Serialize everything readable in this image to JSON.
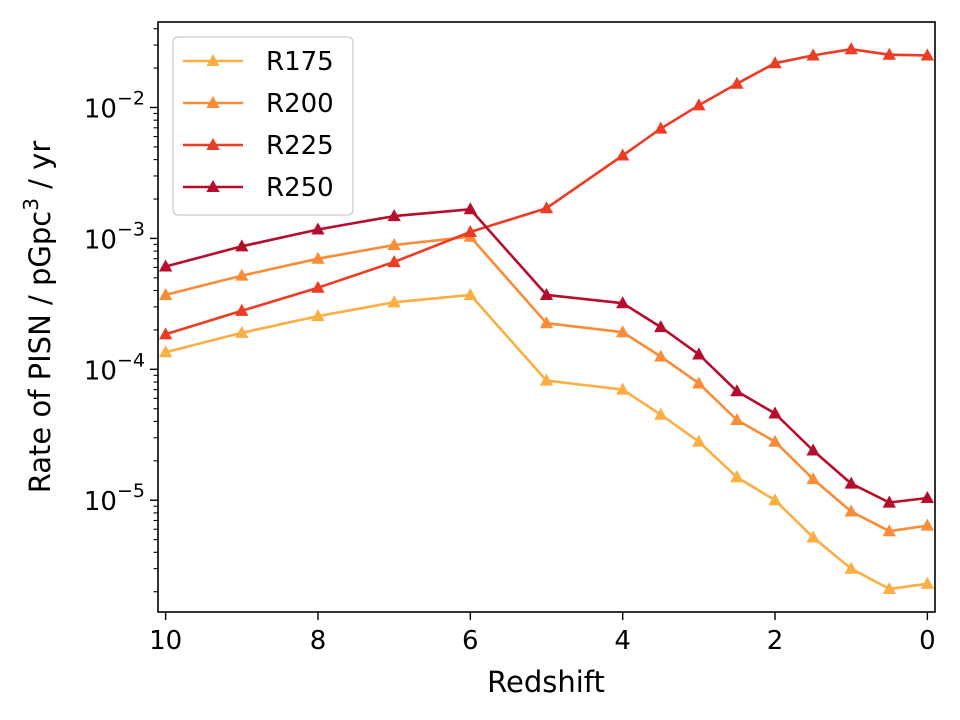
{
  "chart_data": {
    "type": "line",
    "title": "",
    "xlabel": "Redshift",
    "ylabel_main": "Rate of PISN / pGpc",
    "ylabel_sup": "3",
    "ylabel_tail": " / yr",
    "yscale": "log",
    "xlim": [
      10.1,
      -0.1
    ],
    "ylim": [
      1.4e-06,
      0.045
    ],
    "x_ticks": [
      10,
      8,
      6,
      4,
      2,
      0
    ],
    "x_tick_labels": [
      "10",
      "8",
      "6",
      "4",
      "2",
      "0"
    ],
    "y_ticks": [
      {
        "value": 0.01,
        "base": "10",
        "exp": "−2"
      },
      {
        "value": 0.001,
        "base": "10",
        "exp": "−3"
      },
      {
        "value": 0.0001,
        "base": "10",
        "exp": "−4"
      },
      {
        "value": 1e-05,
        "base": "10",
        "exp": "−5"
      }
    ],
    "legend_position": "top-left",
    "marker": "triangle",
    "x": [
      10,
      9,
      8,
      7,
      6,
      5,
      4,
      3.5,
      3,
      2.5,
      2,
      1.5,
      1,
      0.5,
      0
    ],
    "series": [
      {
        "name": "R175",
        "color": "#FBAE42",
        "values": [
          0.000135,
          0.00019,
          0.000255,
          0.000325,
          0.00037,
          8.2e-05,
          7e-05,
          4.5e-05,
          2.8e-05,
          1.5e-05,
          1e-05,
          5.2e-06,
          3e-06,
          2.1e-06,
          2.3e-06
        ]
      },
      {
        "name": "R200",
        "color": "#FB8B36",
        "values": [
          0.00037,
          0.00052,
          0.0007,
          0.00089,
          0.00103,
          0.000225,
          0.000192,
          0.000125,
          7.8e-05,
          4.1e-05,
          2.8e-05,
          1.45e-05,
          8.2e-06,
          5.8e-06,
          6.4e-06
        ]
      },
      {
        "name": "R225",
        "color": "#EC3C24",
        "values": [
          0.000185,
          0.00028,
          0.00042,
          0.00066,
          0.00112,
          0.0017,
          0.0043,
          0.0069,
          0.0104,
          0.0152,
          0.0218,
          0.025,
          0.0279,
          0.0253,
          0.025
        ]
      },
      {
        "name": "R250",
        "color": "#B60D2D",
        "values": [
          0.00061,
          0.00087,
          0.00117,
          0.00148,
          0.00167,
          0.00037,
          0.00032,
          0.00021,
          0.00013,
          6.8e-05,
          4.6e-05,
          2.4e-05,
          1.34e-05,
          9.6e-06,
          1.04e-05
        ]
      }
    ]
  }
}
